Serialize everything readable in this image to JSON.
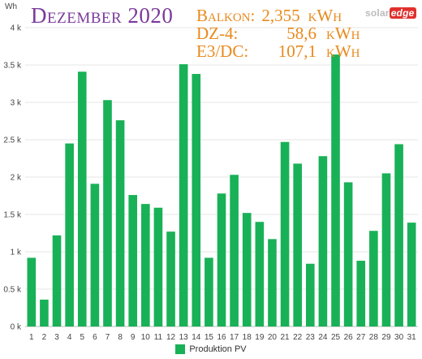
{
  "header": {
    "title": "Dezember 2020",
    "stats": [
      {
        "label": "Balkon:",
        "value": "2,355",
        "unit": "kWh"
      },
      {
        "label": "DZ-4:",
        "value": "58,6",
        "unit": "kWh"
      },
      {
        "label": "E3/DC:",
        "value": "107,1",
        "unit": "kWh"
      }
    ],
    "brand_main": "solar",
    "brand_accent": "edge"
  },
  "chart_data": {
    "type": "bar",
    "ylabel": "Wh",
    "ylim": [
      0,
      4000
    ],
    "yticks": [
      0,
      500,
      1000,
      1500,
      2000,
      2500,
      3000,
      3500,
      4000
    ],
    "ytick_labels": [
      "0 k",
      "0.5 k",
      "1 k",
      "1.5 k",
      "2 k",
      "2.5 k",
      "3 k",
      "3.5 k",
      "4 k"
    ],
    "categories": [
      "1",
      "2",
      "3",
      "4",
      "5",
      "6",
      "7",
      "8",
      "9",
      "10",
      "11",
      "12",
      "13",
      "14",
      "15",
      "16",
      "17",
      "18",
      "19",
      "20",
      "21",
      "22",
      "23",
      "24",
      "25",
      "26",
      "27",
      "28",
      "29",
      "30",
      "31"
    ],
    "series": [
      {
        "name": "Produktion PV",
        "color": "#19b157",
        "values": [
          920,
          360,
          1220,
          2450,
          3410,
          1910,
          3030,
          2760,
          1760,
          1640,
          1590,
          1270,
          3510,
          3380,
          920,
          1780,
          2030,
          1520,
          1400,
          1170,
          2470,
          2180,
          840,
          2280,
          3640,
          1930,
          880,
          1280,
          2050,
          2440,
          1390
        ]
      }
    ],
    "grid": true,
    "legend_position": "bottom"
  }
}
